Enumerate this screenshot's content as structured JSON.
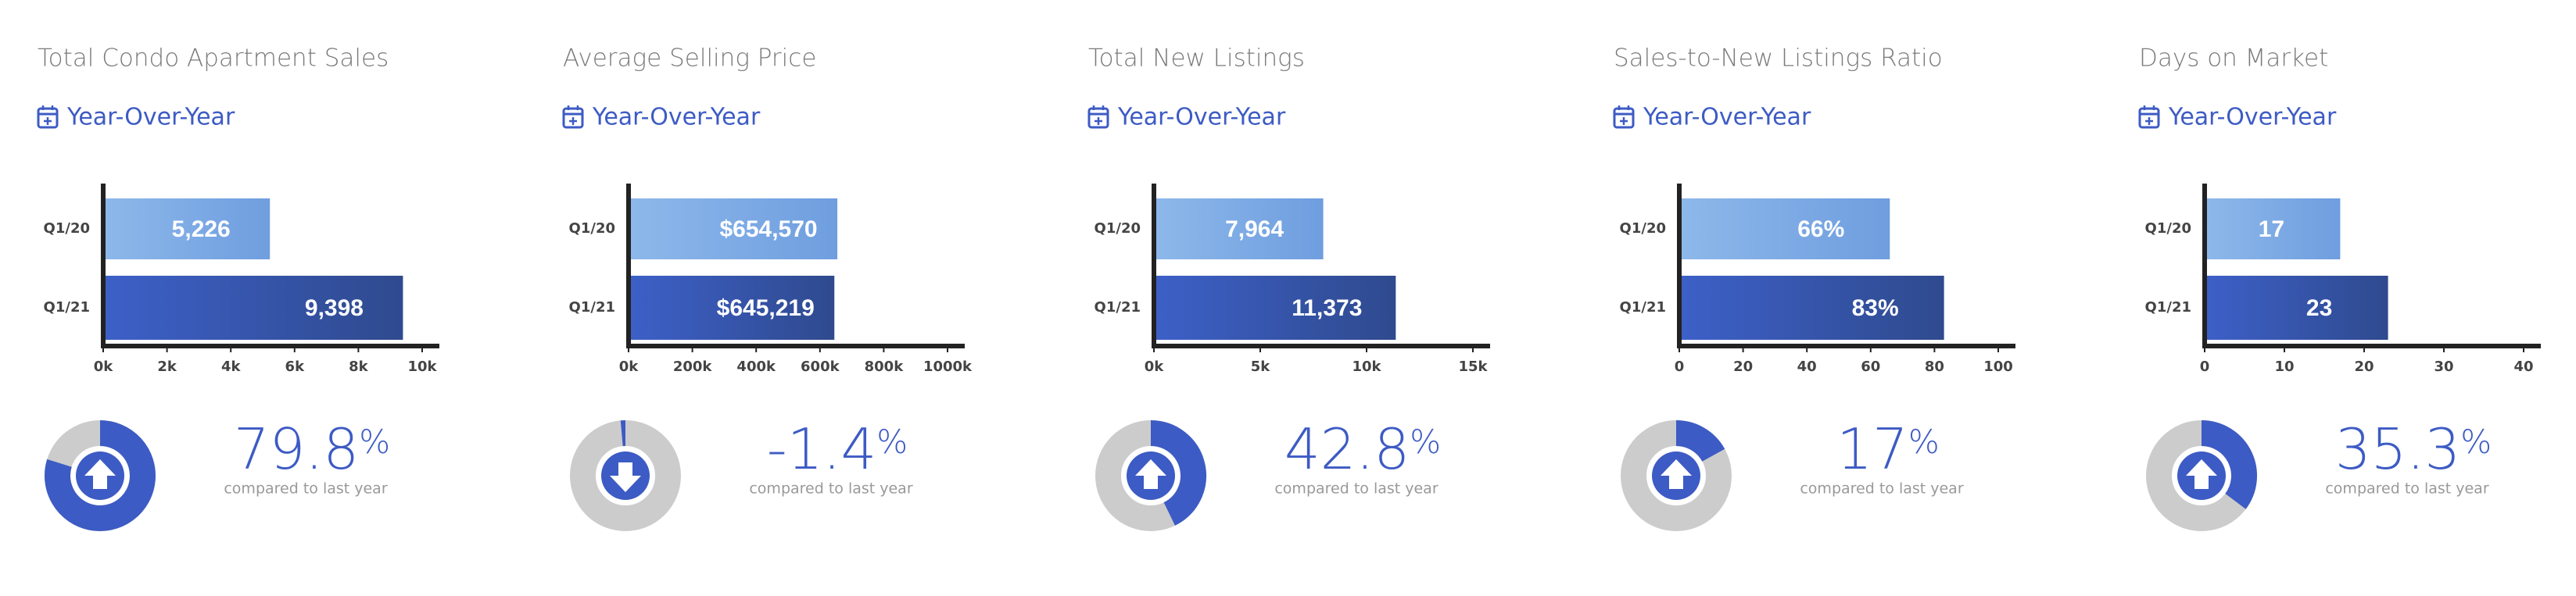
{
  "chart_data": [
    {
      "type": "bar",
      "title": "Total Condo Apartment Sales",
      "period_link": "Year-Over-Year",
      "categories": [
        "Q1/20",
        "Q1/21"
      ],
      "values": [
        5226,
        9398
      ],
      "value_labels": [
        "5,226",
        "9,398"
      ],
      "xlim": [
        0,
        10000
      ],
      "xticks": [
        {
          "value": 0,
          "label": "0k"
        },
        {
          "value": 2000,
          "label": "2k"
        },
        {
          "value": 4000,
          "label": "4k"
        },
        {
          "value": 6000,
          "label": "6k"
        },
        {
          "value": 8000,
          "label": "8k"
        },
        {
          "value": 10000,
          "label": "10k"
        }
      ],
      "colors": [
        "#7eaee6",
        "#3a5cc4"
      ],
      "change": 79.8,
      "change_unit": "%",
      "change_caption": "compared to last year"
    },
    {
      "type": "bar",
      "title": "Average Selling Price",
      "period_link": "Year-Over-Year",
      "categories": [
        "Q1/20",
        "Q1/21"
      ],
      "values": [
        654570,
        645219
      ],
      "value_labels": [
        "$654,570",
        "$645,219"
      ],
      "xlim": [
        0,
        1000000
      ],
      "xticks": [
        {
          "value": 0,
          "label": "0k"
        },
        {
          "value": 200000,
          "label": "200k"
        },
        {
          "value": 400000,
          "label": "400k"
        },
        {
          "value": 600000,
          "label": "600k"
        },
        {
          "value": 800000,
          "label": "800k"
        },
        {
          "value": 1000000,
          "label": "1000k"
        }
      ],
      "colors": [
        "#7eaee6",
        "#3a5cc4"
      ],
      "change": -1.4,
      "change_unit": "%",
      "change_caption": "compared to last year"
    },
    {
      "type": "bar",
      "title": "Total New Listings",
      "period_link": "Year-Over-Year",
      "categories": [
        "Q1/20",
        "Q1/21"
      ],
      "values": [
        7964,
        11373
      ],
      "value_labels": [
        "7,964",
        "11,373"
      ],
      "xlim": [
        0,
        15000
      ],
      "xticks": [
        {
          "value": 0,
          "label": "0k"
        },
        {
          "value": 5000,
          "label": "5k"
        },
        {
          "value": 10000,
          "label": "10k"
        },
        {
          "value": 15000,
          "label": "15k"
        }
      ],
      "colors": [
        "#7eaee6",
        "#3a5cc4"
      ],
      "change": 42.8,
      "change_unit": "%",
      "change_caption": "compared to last year"
    },
    {
      "type": "bar",
      "title": "Sales-to-New Listings Ratio",
      "period_link": "Year-Over-Year",
      "categories": [
        "Q1/20",
        "Q1/21"
      ],
      "values": [
        66,
        83
      ],
      "value_labels": [
        "66%",
        "83%"
      ],
      "xlim": [
        0,
        100
      ],
      "xticks": [
        0,
        20,
        40,
        60,
        80,
        100
      ],
      "colors": [
        "#7eaee6",
        "#3a5cc4"
      ],
      "change": 17,
      "change_unit": "%",
      "change_caption": "compared to last year"
    },
    {
      "type": "bar",
      "title": "Days on Market",
      "period_link": "Year-Over-Year",
      "categories": [
        "Q1/20",
        "Q1/21"
      ],
      "values": [
        17,
        23
      ],
      "xlim": [
        0,
        40
      ],
      "xticks": [
        0,
        10,
        20,
        30,
        40
      ],
      "colors": [
        "#7eaee6",
        "#3a5cc4"
      ],
      "change": 35.3,
      "change_unit": "%",
      "change_caption": "compared to last year"
    }
  ]
}
